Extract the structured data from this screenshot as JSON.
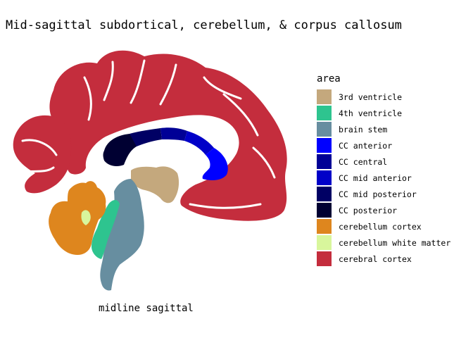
{
  "title": "Mid-sagittal subdortical, cerebellum, & corpus callosum",
  "caption": "midline sagittal",
  "legend": {
    "title": "area",
    "items": [
      {
        "label": "3rd ventricle",
        "color": "#C4A87D"
      },
      {
        "label": "4th ventricle",
        "color": "#2EC48F"
      },
      {
        "label": "brain stem",
        "color": "#678EA0"
      },
      {
        "label": "CC anterior",
        "color": "#0000FF"
      },
      {
        "label": "CC central",
        "color": "#000096"
      },
      {
        "label": "CC mid anterior",
        "color": "#0000C8"
      },
      {
        "label": "CC mid posterior",
        "color": "#000064"
      },
      {
        "label": "CC posterior",
        "color": "#000032"
      },
      {
        "label": "cerebellum cortex",
        "color": "#DE861E"
      },
      {
        "label": "cerebellum white matter",
        "color": "#D8F69C"
      },
      {
        "label": "cerebral cortex",
        "color": "#C42D3D"
      }
    ]
  }
}
